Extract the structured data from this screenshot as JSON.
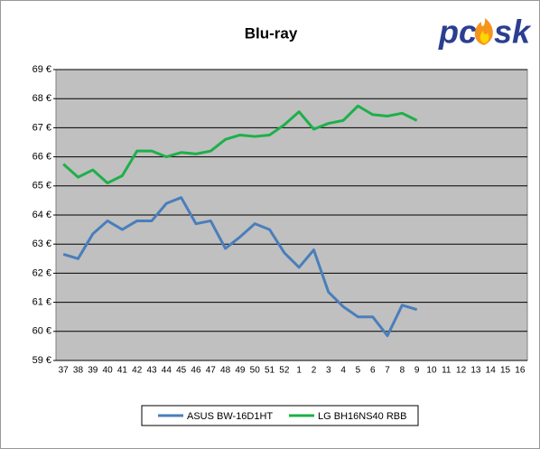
{
  "chart_data": {
    "type": "line",
    "title": "Blu-ray",
    "logo": {
      "left": "pc",
      "right": "sk"
    },
    "categories": [
      "37",
      "38",
      "39",
      "40",
      "41",
      "42",
      "43",
      "44",
      "45",
      "46",
      "47",
      "48",
      "49",
      "50",
      "51",
      "52",
      "1",
      "2",
      "3",
      "4",
      "5",
      "6",
      "7",
      "8",
      "9",
      "10",
      "11",
      "12",
      "13",
      "14",
      "15",
      "16"
    ],
    "series": [
      {
        "name": "ASUS BW-16D1HT",
        "color": "#4a7ebb",
        "values": [
          62.65,
          62.5,
          63.35,
          63.8,
          63.5,
          63.8,
          63.8,
          64.4,
          64.6,
          63.7,
          63.8,
          62.85,
          63.25,
          63.7,
          63.5,
          62.7,
          62.2,
          62.8,
          61.35,
          60.85,
          60.5,
          60.5,
          59.85,
          60.9,
          60.75,
          null,
          null,
          null,
          null,
          null,
          null,
          null
        ]
      },
      {
        "name": "LG BH16NS40 RBB",
        "color": "#1db04a",
        "values": [
          65.75,
          65.3,
          65.55,
          65.1,
          65.35,
          66.2,
          66.2,
          66.0,
          66.15,
          66.1,
          66.2,
          66.6,
          66.75,
          66.7,
          66.75,
          67.1,
          67.55,
          66.95,
          67.15,
          67.25,
          67.75,
          67.45,
          67.4,
          67.5,
          67.25,
          null,
          null,
          null,
          null,
          null,
          null,
          null
        ]
      }
    ],
    "ylim": [
      59,
      69
    ],
    "yticks": [
      {
        "value": 59,
        "label": "59 €"
      },
      {
        "value": 60,
        "label": "60 €"
      },
      {
        "value": 61,
        "label": "61 €"
      },
      {
        "value": 62,
        "label": "62 €"
      },
      {
        "value": 63,
        "label": "63 €"
      },
      {
        "value": 64,
        "label": "64 €"
      },
      {
        "value": 65,
        "label": "65 €"
      },
      {
        "value": 66,
        "label": "66 €"
      },
      {
        "value": 67,
        "label": "67 €"
      },
      {
        "value": 68,
        "label": "68 €"
      },
      {
        "value": 69,
        "label": "69 €"
      }
    ],
    "grid": true,
    "legend": "bottom"
  }
}
